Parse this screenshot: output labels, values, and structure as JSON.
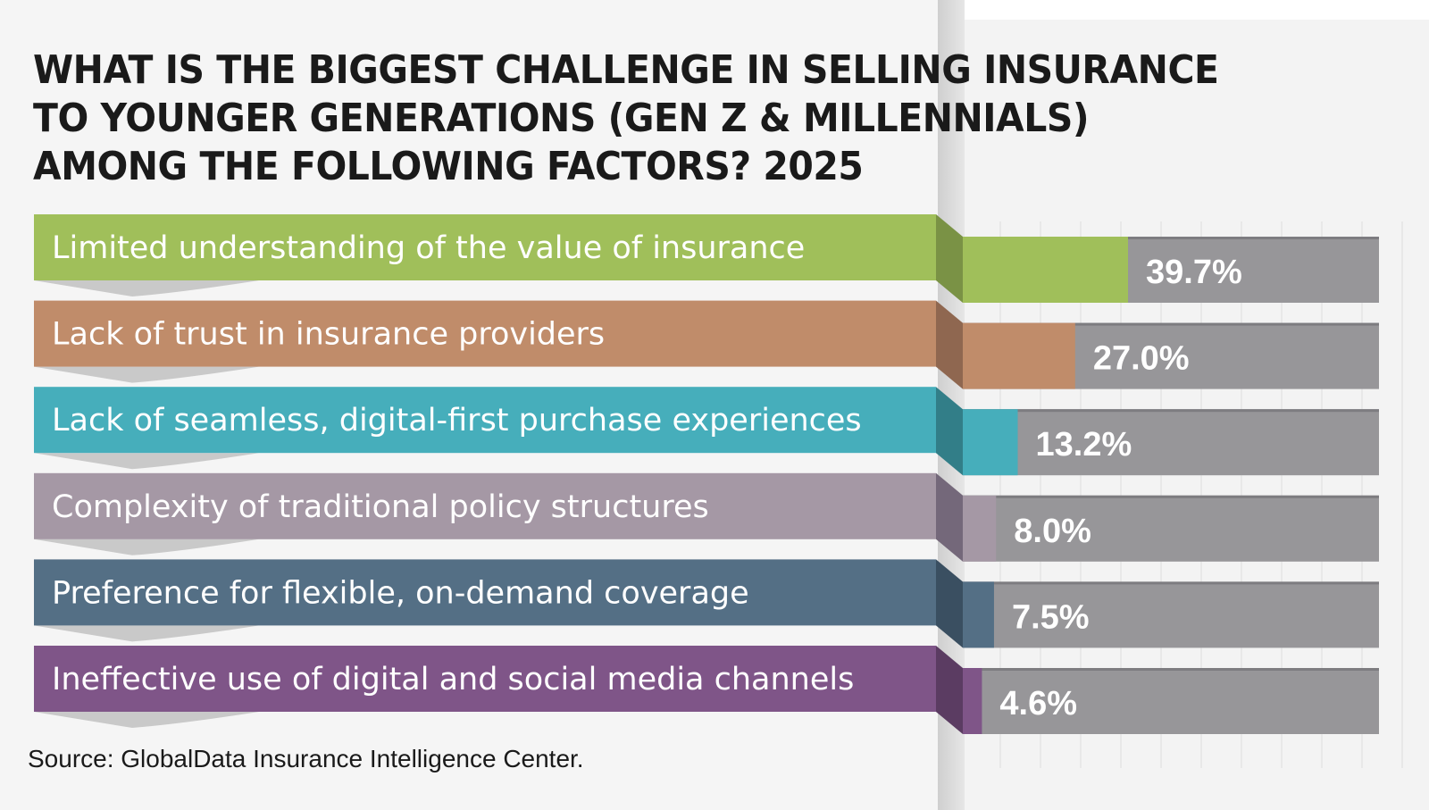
{
  "title_lines": [
    "WHAT IS THE BIGGEST CHALLENGE IN SELLING INSURANCE",
    "TO YOUNGER GENERATIONS (GEN Z & MILLENNIALS)",
    "AMONG THE FOLLOWING FACTORS? 2025"
  ],
  "source": "Source: GlobalData Insurance Intelligence Center.",
  "colors": {
    "track": "#979699",
    "page": "#f5f5f5"
  },
  "chart_data": {
    "type": "bar",
    "orientation": "horizontal",
    "title": "WHAT IS THE BIGGEST CHALLENGE IN SELLING INSURANCE TO YOUNGER GENERATIONS (GEN Z & MILLENNIALS) AMONG THE FOLLOWING FACTORS? 2025",
    "categories": [
      "Limited understanding of the value of insurance",
      "Lack of trust in insurance providers",
      "Lack of seamless, digital-first purchase experiences",
      "Complexity of traditional policy structures",
      "Preference for flexible, on-demand coverage",
      "Ineffective use of digital and social media channels"
    ],
    "values": [
      39.7,
      27.0,
      13.2,
      8.0,
      7.5,
      4.6
    ],
    "value_labels": [
      "39.7%",
      "27.0%",
      "13.2%",
      "8.0%",
      "7.5%",
      "4.6%"
    ],
    "colors": [
      "#a0bf5a",
      "#c08c6a",
      "#46aebb",
      "#a598a5",
      "#546f85",
      "#7f5588"
    ],
    "shadow_colors": [
      "#7a9245",
      "#8f6750",
      "#327e88",
      "#74687a",
      "#3a4f61",
      "#5b3c62"
    ],
    "xlim": [
      0,
      100
    ],
    "xlabel": "",
    "ylabel": "",
    "grid": false,
    "legend": "none"
  }
}
